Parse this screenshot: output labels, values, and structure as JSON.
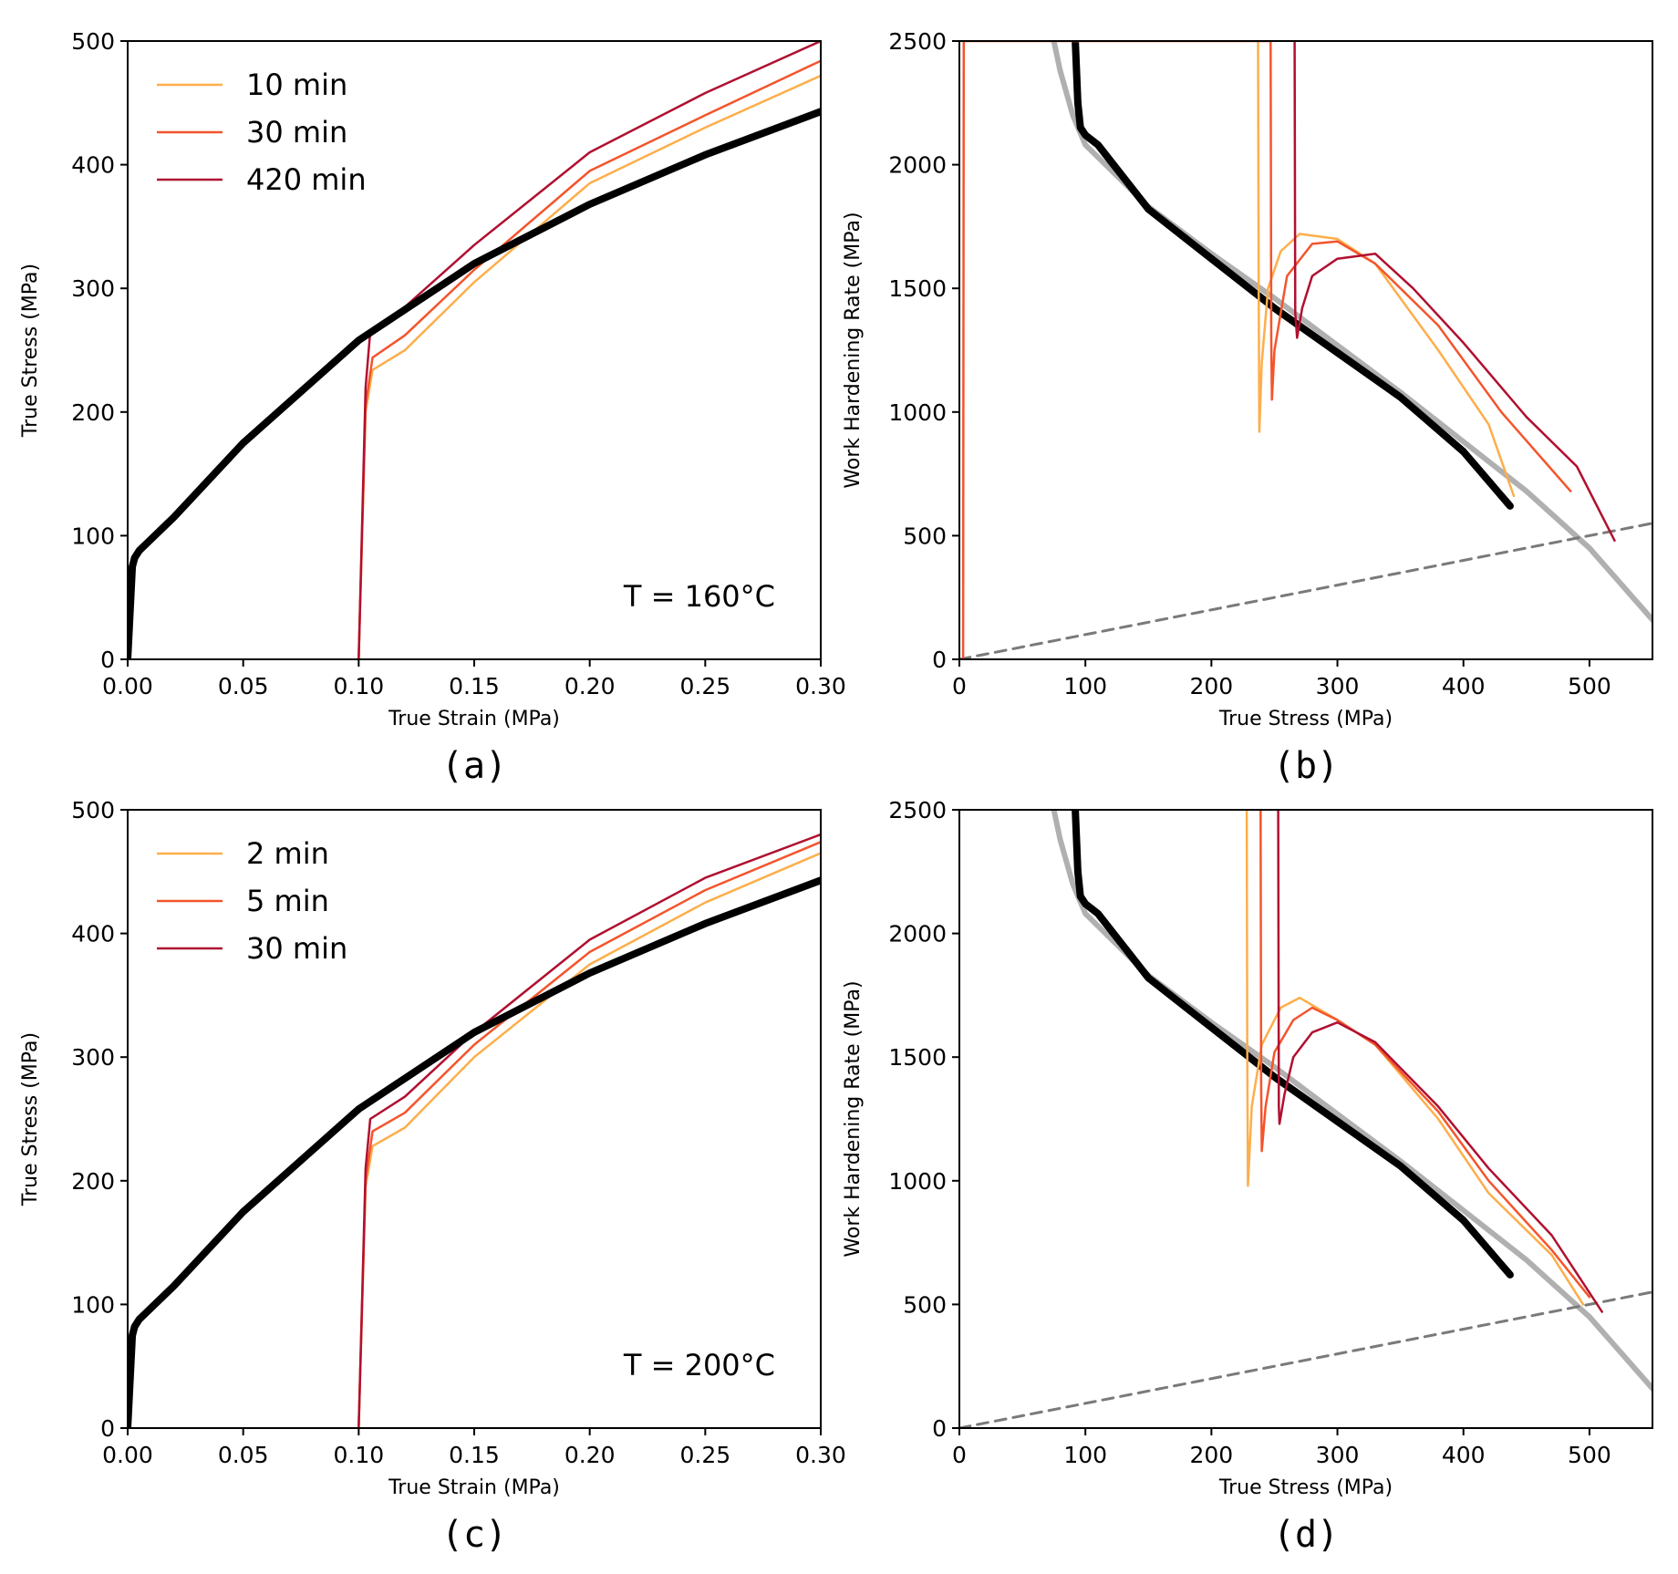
{
  "colors": {
    "short": "#fdae4b",
    "mid": "#f4542c",
    "long": "#b01030",
    "baseline": "#000000",
    "fit": "#b0b0b0",
    "dashed": "#7a7a7a"
  },
  "chart_data": [
    {
      "id": "a",
      "type": "line",
      "panel_label": "(a)",
      "xlabel": "True Strain (MPa)",
      "ylabel": "True Stress (MPa)",
      "xlim": [
        0,
        0.3
      ],
      "ylim": [
        0,
        500
      ],
      "xticks": [
        "0.00",
        "0.05",
        "0.10",
        "0.15",
        "0.20",
        "0.25",
        "0.30"
      ],
      "yticks": [
        "0",
        "100",
        "200",
        "300",
        "400",
        "500"
      ],
      "annotation": "T = 160°C",
      "legend_position": "top-left",
      "series": [
        {
          "name": "10 min",
          "color_key": "short",
          "x": [
            0.1,
            0.103,
            0.106,
            0.12,
            0.15,
            0.2,
            0.25,
            0.3
          ],
          "y": [
            0,
            200,
            234,
            250,
            305,
            385,
            430,
            472
          ]
        },
        {
          "name": "30 min",
          "color_key": "mid",
          "x": [
            0.1,
            0.103,
            0.106,
            0.12,
            0.15,
            0.2,
            0.25,
            0.3
          ],
          "y": [
            0,
            205,
            244,
            262,
            315,
            395,
            440,
            484
          ]
        },
        {
          "name": "420 min",
          "color_key": "long",
          "x": [
            0.1,
            0.103,
            0.105,
            0.12,
            0.15,
            0.2,
            0.25,
            0.3
          ],
          "y": [
            0,
            220,
            265,
            285,
            335,
            410,
            458,
            500
          ]
        },
        {
          "name": "",
          "color_key": "baseline",
          "x": [
            0,
            0.002,
            0.003,
            0.005,
            0.02,
            0.05,
            0.1,
            0.15,
            0.2,
            0.25,
            0.3
          ],
          "y": [
            0,
            75,
            82,
            88,
            115,
            175,
            258,
            320,
            368,
            408,
            443
          ]
        }
      ]
    },
    {
      "id": "b",
      "type": "line",
      "panel_label": "(b)",
      "xlabel": "True Stress (MPa)",
      "ylabel": "Work Hardening Rate (MPa)",
      "xlim": [
        0,
        550
      ],
      "ylim": [
        0,
        2500
      ],
      "xticks": [
        "0",
        "100",
        "200",
        "300",
        "400",
        "500"
      ],
      "yticks": [
        "0",
        "500",
        "1000",
        "1500",
        "2000",
        "2500"
      ],
      "series": [
        {
          "name": "",
          "color_key": "fit",
          "x": [
            75,
            80,
            90,
            100,
            150,
            200,
            250,
            300,
            350,
            400,
            450,
            500,
            550
          ],
          "y": [
            2500,
            2380,
            2200,
            2080,
            1830,
            1640,
            1460,
            1270,
            1080,
            880,
            680,
            450,
            160
          ]
        },
        {
          "name": "",
          "color_key": "dashed",
          "x": [
            0,
            550
          ],
          "y": [
            0,
            550
          ]
        },
        {
          "name": "",
          "color_key": "baseline",
          "x": [
            92,
            94,
            96,
            100,
            110,
            150,
            200,
            250,
            300,
            350,
            400,
            437
          ],
          "y": [
            2500,
            2250,
            2150,
            2120,
            2080,
            1820,
            1620,
            1420,
            1240,
            1060,
            840,
            620
          ]
        },
        {
          "name": "10 min",
          "color_key": "short",
          "x": [
            237,
            237.5,
            238,
            240,
            245,
            255,
            270,
            300,
            330,
            380,
            420,
            440
          ],
          "y": [
            2500,
            1500,
            920,
            1200,
            1500,
            1650,
            1720,
            1700,
            1600,
            1250,
            950,
            660
          ]
        },
        {
          "name": "30 min",
          "color_key": "mid",
          "x": [
            3,
            3.5,
            247,
            247.5,
            248,
            250,
            260,
            280,
            300,
            330,
            380,
            430,
            485
          ],
          "y": [
            0,
            2500,
            2500,
            1300,
            1050,
            1250,
            1550,
            1680,
            1690,
            1600,
            1350,
            1000,
            680
          ]
        },
        {
          "name": "420 min",
          "color_key": "long",
          "x": [
            266,
            266.5,
            268,
            272,
            280,
            300,
            330,
            360,
            400,
            450,
            490,
            520
          ],
          "y": [
            2500,
            1400,
            1300,
            1420,
            1550,
            1620,
            1640,
            1500,
            1280,
            980,
            780,
            480
          ]
        }
      ]
    },
    {
      "id": "c",
      "type": "line",
      "panel_label": "(c)",
      "xlabel": "True Strain (MPa)",
      "ylabel": "True Stress (MPa)",
      "xlim": [
        0,
        0.3
      ],
      "ylim": [
        0,
        500
      ],
      "xticks": [
        "0.00",
        "0.05",
        "0.10",
        "0.15",
        "0.20",
        "0.25",
        "0.30"
      ],
      "yticks": [
        "0",
        "100",
        "200",
        "300",
        "400",
        "500"
      ],
      "annotation": "T = 200°C",
      "legend_position": "top-left",
      "series": [
        {
          "name": "2 min",
          "color_key": "short",
          "x": [
            0.1,
            0.103,
            0.106,
            0.12,
            0.15,
            0.2,
            0.25,
            0.3
          ],
          "y": [
            0,
            195,
            228,
            243,
            300,
            375,
            425,
            465
          ]
        },
        {
          "name": "5 min",
          "color_key": "mid",
          "x": [
            0.1,
            0.103,
            0.106,
            0.12,
            0.15,
            0.2,
            0.25,
            0.3
          ],
          "y": [
            0,
            200,
            240,
            255,
            310,
            385,
            435,
            474
          ]
        },
        {
          "name": "30 min",
          "color_key": "long",
          "x": [
            0.1,
            0.103,
            0.105,
            0.12,
            0.15,
            0.2,
            0.25,
            0.3
          ],
          "y": [
            0,
            210,
            250,
            268,
            320,
            395,
            445,
            480
          ]
        },
        {
          "name": "",
          "color_key": "baseline",
          "x": [
            0,
            0.002,
            0.003,
            0.005,
            0.02,
            0.05,
            0.1,
            0.15,
            0.2,
            0.25,
            0.3
          ],
          "y": [
            0,
            75,
            82,
            88,
            115,
            175,
            258,
            320,
            368,
            408,
            443
          ]
        }
      ]
    },
    {
      "id": "d",
      "type": "line",
      "panel_label": "(d)",
      "xlabel": "True Stress (MPa)",
      "ylabel": "Work Hardening Rate (MPa)",
      "xlim": [
        0,
        550
      ],
      "ylim": [
        0,
        2500
      ],
      "xticks": [
        "0",
        "100",
        "200",
        "300",
        "400",
        "500"
      ],
      "yticks": [
        "0",
        "500",
        "1000",
        "1500",
        "2000",
        "2500"
      ],
      "series": [
        {
          "name": "",
          "color_key": "fit",
          "x": [
            75,
            80,
            90,
            100,
            150,
            200,
            250,
            300,
            350,
            400,
            450,
            500,
            550
          ],
          "y": [
            2500,
            2380,
            2200,
            2080,
            1830,
            1640,
            1460,
            1270,
            1080,
            880,
            680,
            450,
            160
          ]
        },
        {
          "name": "",
          "color_key": "dashed",
          "x": [
            0,
            550
          ],
          "y": [
            0,
            550
          ]
        },
        {
          "name": "",
          "color_key": "baseline",
          "x": [
            92,
            94,
            96,
            100,
            110,
            150,
            200,
            250,
            300,
            350,
            400,
            437
          ],
          "y": [
            2500,
            2250,
            2150,
            2120,
            2080,
            1820,
            1620,
            1420,
            1240,
            1060,
            840,
            620
          ]
        },
        {
          "name": "2 min",
          "color_key": "short",
          "x": [
            228,
            228.5,
            229,
            232,
            240,
            255,
            270,
            300,
            330,
            380,
            420,
            470,
            495
          ],
          "y": [
            2500,
            1500,
            980,
            1300,
            1550,
            1700,
            1740,
            1650,
            1550,
            1250,
            950,
            700,
            500
          ]
        },
        {
          "name": "5 min",
          "color_key": "mid",
          "x": [
            239,
            239.5,
            240,
            243,
            250,
            265,
            280,
            300,
            330,
            380,
            420,
            470,
            500
          ],
          "y": [
            2500,
            1400,
            1120,
            1300,
            1520,
            1650,
            1700,
            1650,
            1550,
            1280,
            1000,
            720,
            530
          ]
        },
        {
          "name": "30 min",
          "color_key": "long",
          "x": [
            253,
            253.5,
            254,
            258,
            265,
            280,
            300,
            330,
            380,
            420,
            470,
            510
          ],
          "y": [
            2500,
            1300,
            1230,
            1350,
            1500,
            1600,
            1640,
            1560,
            1300,
            1050,
            780,
            470
          ]
        }
      ]
    }
  ]
}
